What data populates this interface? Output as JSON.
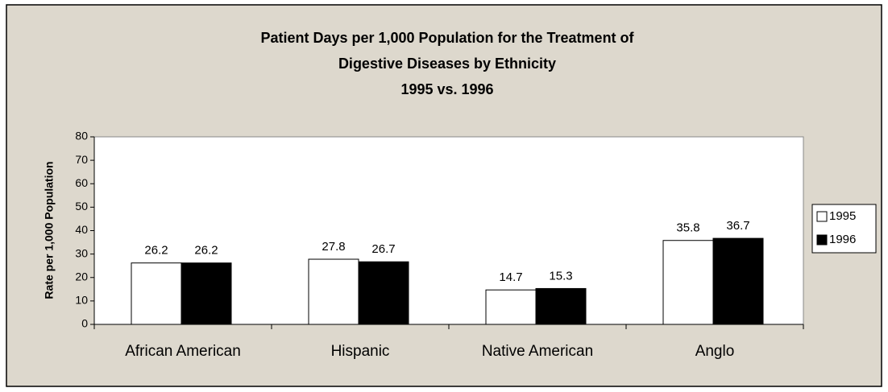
{
  "chart_data": {
    "type": "bar",
    "title": [
      "Patient Days per 1,000 Population for the Treatment of",
      "Digestive Diseases by Ethnicity",
      "1995 vs. 1996"
    ],
    "ylabel": "Rate per 1,000 Population",
    "categories": [
      "African American",
      "Hispanic",
      "Native American",
      "Anglo"
    ],
    "series": [
      {
        "name": "1995",
        "color": "#ffffff",
        "values": [
          26.2,
          27.8,
          14.7,
          35.8
        ]
      },
      {
        "name": "1996",
        "color": "#000000",
        "values": [
          26.2,
          26.7,
          15.3,
          36.7
        ]
      }
    ],
    "ylim": [
      0,
      80
    ],
    "yticks": [
      0,
      10,
      20,
      30,
      40,
      50,
      60,
      70,
      80
    ],
    "grid": false,
    "legend": "right"
  }
}
